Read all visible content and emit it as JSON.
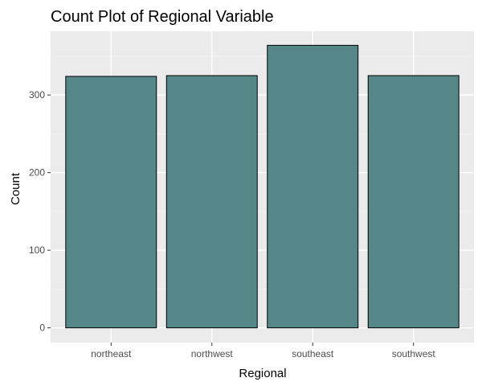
{
  "chart_data": {
    "type": "bar",
    "title": "Count Plot of Regional Variable",
    "xlabel": "Regional",
    "ylabel": "Count",
    "categories": [
      "northeast",
      "northwest",
      "southeast",
      "southwest"
    ],
    "values": [
      324,
      325,
      364,
      325
    ],
    "ylim": [
      -19,
      382
    ],
    "yticks": [
      0,
      100,
      200,
      300
    ],
    "grid": true,
    "legend": "none",
    "colors": {
      "bar_fill": "#568788",
      "bar_stroke": "#000000",
      "panel_bg": "#ebebeb",
      "grid_major": "#ffffff",
      "grid_minor": "#f5f5f5",
      "tick_text": "#4d4d4d"
    }
  }
}
